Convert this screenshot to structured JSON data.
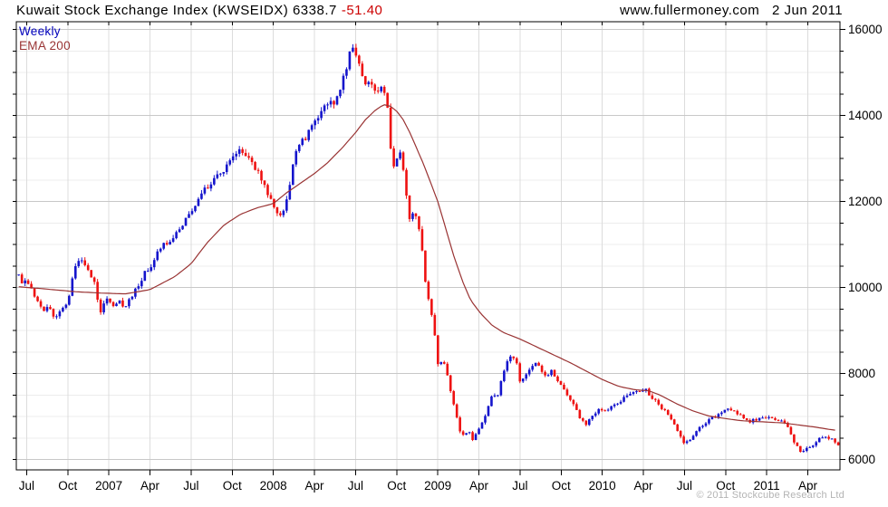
{
  "header": {
    "title_main": "Kuwait Stock Exchange Index (KWSEIDX) 6338.7",
    "change": "-51.40",
    "website": "www.fullermoney.com",
    "date": "2 Jun 2011"
  },
  "legend": {
    "weekly": "Weekly",
    "ema": "EMA 200"
  },
  "footer": {
    "copyright": "© 2011 Stockcube Research Ltd"
  },
  "chart_data": {
    "type": "candlestick",
    "interval": "weekly",
    "title": "Kuwait Stock Exchange Index (KWSEIDX)",
    "last_close": 6338.7,
    "change": -51.4,
    "x_unit": "decimal_year",
    "x_axis": {
      "start": 2006.44,
      "end": 2011.44,
      "labels": [
        "Jul",
        "Oct",
        "2007",
        "Apr",
        "Jul",
        "Oct",
        "2008",
        "Apr",
        "Jul",
        "Oct",
        "2009",
        "Apr",
        "Jul",
        "Oct",
        "2010",
        "Apr",
        "Jul",
        "Oct",
        "2011",
        "Apr"
      ],
      "first_tick": 2006.5,
      "tick_step": 0.25
    },
    "y_axis": {
      "min": 5760,
      "max": 16180,
      "ticks": [
        6000,
        8000,
        10000,
        12000,
        14000,
        16000
      ],
      "minor_step": 500,
      "grid": true,
      "side": "right"
    },
    "series": [
      {
        "name": "KWSEIDX weekly close (anchor path)",
        "points": [
          [
            2006.45,
            10280
          ],
          [
            2006.47,
            10060
          ],
          [
            2006.5,
            10160
          ],
          [
            2006.53,
            9920
          ],
          [
            2006.56,
            9750
          ],
          [
            2006.6,
            9420
          ],
          [
            2006.63,
            9640
          ],
          [
            2006.67,
            9260
          ],
          [
            2006.71,
            9500
          ],
          [
            2006.75,
            9680
          ],
          [
            2006.79,
            10480
          ],
          [
            2006.83,
            10640
          ],
          [
            2006.87,
            10420
          ],
          [
            2006.91,
            10140
          ],
          [
            2006.945,
            9360
          ],
          [
            2006.98,
            9740
          ],
          [
            2007.02,
            9560
          ],
          [
            2007.06,
            9660
          ],
          [
            2007.1,
            9560
          ],
          [
            2007.14,
            9800
          ],
          [
            2007.18,
            10040
          ],
          [
            2007.22,
            10340
          ],
          [
            2007.26,
            10520
          ],
          [
            2007.31,
            10880
          ],
          [
            2007.36,
            11080
          ],
          [
            2007.42,
            11280
          ],
          [
            2007.47,
            11580
          ],
          [
            2007.52,
            11880
          ],
          [
            2007.57,
            12280
          ],
          [
            2007.62,
            12380
          ],
          [
            2007.66,
            12680
          ],
          [
            2007.72,
            12800
          ],
          [
            2007.76,
            13000
          ],
          [
            2007.8,
            13180
          ],
          [
            2007.84,
            13120
          ],
          [
            2007.88,
            12880
          ],
          [
            2007.92,
            12540
          ],
          [
            2007.96,
            12240
          ],
          [
            2008.0,
            11930
          ],
          [
            2008.03,
            11640
          ],
          [
            2008.06,
            11760
          ],
          [
            2008.09,
            12200
          ],
          [
            2008.12,
            12800
          ],
          [
            2008.15,
            13280
          ],
          [
            2008.18,
            13420
          ],
          [
            2008.21,
            13580
          ],
          [
            2008.25,
            13780
          ],
          [
            2008.29,
            14080
          ],
          [
            2008.33,
            14280
          ],
          [
            2008.37,
            14340
          ],
          [
            2008.4,
            14580
          ],
          [
            2008.44,
            15080
          ],
          [
            2008.47,
            15480
          ],
          [
            2008.49,
            15620
          ],
          [
            2008.52,
            15280
          ],
          [
            2008.55,
            14760
          ],
          [
            2008.58,
            14840
          ],
          [
            2008.62,
            14560
          ],
          [
            2008.66,
            14680
          ],
          [
            2008.69,
            14380
          ],
          [
            2008.72,
            12960
          ],
          [
            2008.74,
            12820
          ],
          [
            2008.77,
            13180
          ],
          [
            2008.8,
            12460
          ],
          [
            2008.83,
            11520
          ],
          [
            2008.86,
            11780
          ],
          [
            2008.89,
            11340
          ],
          [
            2008.92,
            10260
          ],
          [
            2008.95,
            9560
          ],
          [
            2008.98,
            8980
          ],
          [
            2009.0,
            8260
          ],
          [
            2009.04,
            8180
          ],
          [
            2009.07,
            7760
          ],
          [
            2009.1,
            7260
          ],
          [
            2009.13,
            6660
          ],
          [
            2009.16,
            6520
          ],
          [
            2009.19,
            6700
          ],
          [
            2009.21,
            6430
          ],
          [
            2009.23,
            6560
          ],
          [
            2009.26,
            6820
          ],
          [
            2009.3,
            7100
          ],
          [
            2009.33,
            7520
          ],
          [
            2009.36,
            7460
          ],
          [
            2009.39,
            7900
          ],
          [
            2009.42,
            8240
          ],
          [
            2009.45,
            8440
          ],
          [
            2009.48,
            8260
          ],
          [
            2009.5,
            7820
          ],
          [
            2009.53,
            7960
          ],
          [
            2009.57,
            8140
          ],
          [
            2009.6,
            8220
          ],
          [
            2009.63,
            8060
          ],
          [
            2009.66,
            7960
          ],
          [
            2009.69,
            8040
          ],
          [
            2009.72,
            7900
          ],
          [
            2009.75,
            7720
          ],
          [
            2009.79,
            7520
          ],
          [
            2009.83,
            7220
          ],
          [
            2009.87,
            6920
          ],
          [
            2009.9,
            6780
          ],
          [
            2009.94,
            7020
          ],
          [
            2009.98,
            7180
          ],
          [
            2010.02,
            7160
          ],
          [
            2010.06,
            7260
          ],
          [
            2010.1,
            7320
          ],
          [
            2010.14,
            7440
          ],
          [
            2010.18,
            7540
          ],
          [
            2010.22,
            7600
          ],
          [
            2010.26,
            7650
          ],
          [
            2010.3,
            7460
          ],
          [
            2010.34,
            7300
          ],
          [
            2010.38,
            7120
          ],
          [
            2010.42,
            6920
          ],
          [
            2010.46,
            6620
          ],
          [
            2010.5,
            6380
          ],
          [
            2010.54,
            6500
          ],
          [
            2010.58,
            6700
          ],
          [
            2010.62,
            6850
          ],
          [
            2010.66,
            6940
          ],
          [
            2010.7,
            7040
          ],
          [
            2010.74,
            7140
          ],
          [
            2010.78,
            7180
          ],
          [
            2010.82,
            7060
          ],
          [
            2010.86,
            6960
          ],
          [
            2010.9,
            6880
          ],
          [
            2010.94,
            6950
          ],
          [
            2010.98,
            7000
          ],
          [
            2011.02,
            6990
          ],
          [
            2011.06,
            6950
          ],
          [
            2011.1,
            6860
          ],
          [
            2011.14,
            6650
          ],
          [
            2011.18,
            6320
          ],
          [
            2011.21,
            6160
          ],
          [
            2011.25,
            6260
          ],
          [
            2011.29,
            6360
          ],
          [
            2011.33,
            6500
          ],
          [
            2011.37,
            6540
          ],
          [
            2011.4,
            6450
          ],
          [
            2011.435,
            6339
          ]
        ]
      },
      {
        "name": "EMA 200",
        "points": [
          [
            2006.44,
            10020
          ],
          [
            2006.6,
            9970
          ],
          [
            2006.8,
            9900
          ],
          [
            2006.95,
            9870
          ],
          [
            2007.1,
            9850
          ],
          [
            2007.25,
            9950
          ],
          [
            2007.4,
            10250
          ],
          [
            2007.5,
            10550
          ],
          [
            2007.6,
            11050
          ],
          [
            2007.7,
            11450
          ],
          [
            2007.8,
            11700
          ],
          [
            2007.9,
            11850
          ],
          [
            2008.0,
            11950
          ],
          [
            2008.08,
            12200
          ],
          [
            2008.16,
            12410
          ],
          [
            2008.25,
            12650
          ],
          [
            2008.33,
            12900
          ],
          [
            2008.42,
            13250
          ],
          [
            2008.5,
            13600
          ],
          [
            2008.56,
            13900
          ],
          [
            2008.62,
            14120
          ],
          [
            2008.67,
            14250
          ],
          [
            2008.71,
            14220
          ],
          [
            2008.75,
            14100
          ],
          [
            2008.79,
            13900
          ],
          [
            2008.83,
            13600
          ],
          [
            2008.87,
            13250
          ],
          [
            2008.91,
            12900
          ],
          [
            2008.95,
            12500
          ],
          [
            2009.0,
            12000
          ],
          [
            2009.05,
            11350
          ],
          [
            2009.1,
            10700
          ],
          [
            2009.15,
            10150
          ],
          [
            2009.2,
            9700
          ],
          [
            2009.26,
            9400
          ],
          [
            2009.33,
            9120
          ],
          [
            2009.4,
            8950
          ],
          [
            2009.5,
            8800
          ],
          [
            2009.6,
            8620
          ],
          [
            2009.7,
            8440
          ],
          [
            2009.8,
            8260
          ],
          [
            2009.9,
            8060
          ],
          [
            2010.0,
            7860
          ],
          [
            2010.1,
            7700
          ],
          [
            2010.2,
            7620
          ],
          [
            2010.28,
            7600
          ],
          [
            2010.35,
            7500
          ],
          [
            2010.45,
            7300
          ],
          [
            2010.55,
            7130
          ],
          [
            2010.65,
            7010
          ],
          [
            2010.75,
            6950
          ],
          [
            2010.85,
            6900
          ],
          [
            2011.0,
            6870
          ],
          [
            2011.1,
            6850
          ],
          [
            2011.2,
            6800
          ],
          [
            2011.3,
            6750
          ],
          [
            2011.38,
            6700
          ],
          [
            2011.42,
            6680
          ]
        ]
      }
    ],
    "colors": {
      "up": "#1414cc",
      "down": "#ee1111",
      "ema": "#993333",
      "grid_major": "#c8c8c8",
      "grid_minor": "#ececec",
      "grid_vertical": "#dcdcdc",
      "axis": "#000000",
      "change_text": "#cc0000",
      "copyright_text": "#b4b4b4"
    }
  }
}
